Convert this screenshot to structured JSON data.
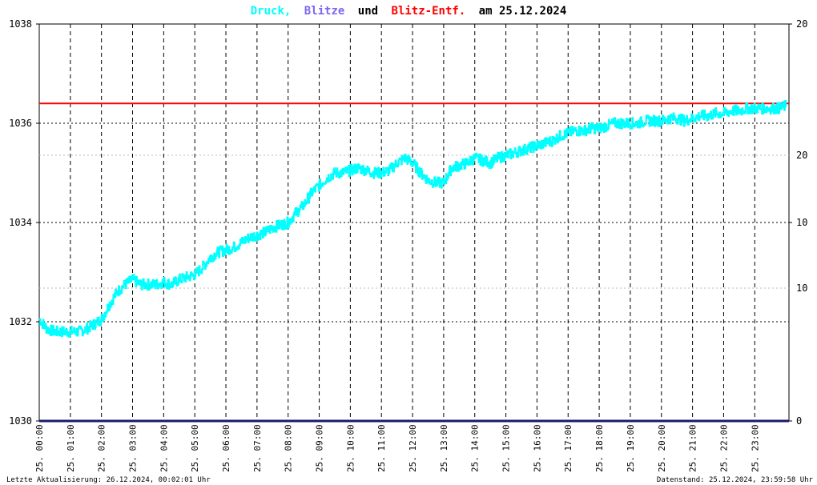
{
  "colors": {
    "druck": "#00ffff",
    "blitze": "#7b68ee",
    "blitz_entf": "#ff0000",
    "baseline": "#1a1a6e",
    "grid": "#000000",
    "grid_light": "#bbbbbb",
    "text": "#000000",
    "right_axis_upper": "#ff0000"
  },
  "title": {
    "druck": "Druck,",
    "blitze": "Blitze",
    "und": "und",
    "blitz_entf": "Blitz-Entf.",
    "am_date": "am 25.12.2024"
  },
  "footer": {
    "left": "Letzte Aktualisierung: 26.12.2024, 00:02:01 Uhr",
    "right": "Datenstand: 25.12.2024, 23:59:58 Uhr"
  },
  "chart_data": {
    "type": "line",
    "y_left": {
      "range": [
        1030,
        1038
      ],
      "ticks": [
        "1030",
        "1032",
        "1034",
        "1036",
        "1038"
      ]
    },
    "y_right": {
      "ticks_black": [
        "0",
        "10",
        "20"
      ],
      "ticks_red": [
        "10",
        "20"
      ]
    },
    "x_ticks": [
      "25. 00:00",
      "25. 01:00",
      "25. 02:00",
      "25. 03:00",
      "25. 04:00",
      "25. 05:00",
      "25. 06:00",
      "25. 07:00",
      "25. 08:00",
      "25. 09:00",
      "25. 10:00",
      "25. 11:00",
      "25. 12:00",
      "25. 13:00",
      "25. 14:00",
      "25. 15:00",
      "25. 16:00",
      "25. 17:00",
      "25. 18:00",
      "25. 19:00",
      "25. 20:00",
      "25. 21:00",
      "25. 22:00",
      "25. 23:00"
    ],
    "reference_line": {
      "value": 1036.4
    },
    "druck_series": {
      "x_hours": [
        0,
        0.25,
        0.5,
        0.75,
        1.0,
        1.25,
        1.5,
        1.75,
        2.0,
        2.25,
        2.5,
        2.75,
        3.0,
        3.25,
        3.5,
        3.75,
        4.0,
        4.25,
        4.5,
        4.75,
        5.0,
        5.25,
        5.5,
        5.75,
        6.0,
        6.25,
        6.5,
        6.75,
        7.0,
        7.25,
        7.5,
        7.75,
        8.0,
        8.25,
        8.5,
        8.75,
        9.0,
        9.25,
        9.5,
        9.75,
        10.0,
        10.25,
        10.5,
        10.75,
        11.0,
        11.25,
        11.5,
        11.75,
        12.0,
        12.25,
        12.5,
        12.75,
        13.0,
        13.25,
        13.5,
        13.75,
        14.0,
        14.25,
        14.5,
        14.75,
        15.0,
        15.25,
        15.5,
        15.75,
        16.0,
        16.25,
        16.5,
        16.75,
        17.0,
        17.25,
        17.5,
        17.75,
        18.0,
        18.25,
        18.5,
        18.75,
        19.0,
        19.25,
        19.5,
        19.75,
        20.0,
        20.25,
        20.5,
        20.75,
        21.0,
        21.25,
        21.5,
        21.75,
        22.0,
        22.25,
        22.5,
        22.75,
        23.0,
        23.25,
        23.5,
        23.75,
        24.0
      ],
      "values": [
        1032.05,
        1031.85,
        1031.8,
        1031.8,
        1031.8,
        1031.8,
        1031.85,
        1031.95,
        1032.05,
        1032.35,
        1032.6,
        1032.75,
        1032.85,
        1032.75,
        1032.75,
        1032.75,
        1032.8,
        1032.75,
        1032.85,
        1032.9,
        1032.95,
        1033.1,
        1033.3,
        1033.4,
        1033.45,
        1033.5,
        1033.6,
        1033.7,
        1033.75,
        1033.8,
        1033.9,
        1033.95,
        1034.0,
        1034.2,
        1034.35,
        1034.6,
        1034.75,
        1034.9,
        1035.0,
        1035.0,
        1035.05,
        1035.1,
        1035.05,
        1035.0,
        1035.0,
        1035.05,
        1035.2,
        1035.3,
        1035.2,
        1035.0,
        1034.85,
        1034.8,
        1034.8,
        1035.1,
        1035.15,
        1035.2,
        1035.3,
        1035.25,
        1035.2,
        1035.3,
        1035.35,
        1035.4,
        1035.45,
        1035.5,
        1035.55,
        1035.6,
        1035.65,
        1035.75,
        1035.8,
        1035.85,
        1035.85,
        1035.9,
        1035.9,
        1035.95,
        1036.0,
        1036.0,
        1036.0,
        1036.0,
        1036.05,
        1036.05,
        1036.05,
        1036.1,
        1036.1,
        1036.05,
        1036.1,
        1036.15,
        1036.15,
        1036.2,
        1036.2,
        1036.25,
        1036.25,
        1036.3,
        1036.3,
        1036.3,
        1036.3,
        1036.3,
        1036.35
      ]
    },
    "blitze_series": {
      "count": 0
    }
  }
}
